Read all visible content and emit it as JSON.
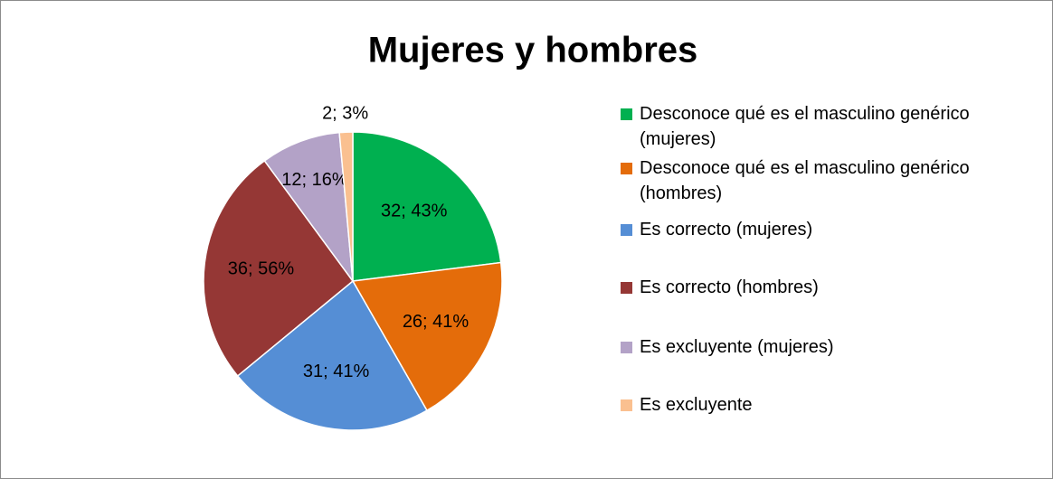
{
  "chart_data": {
    "type": "pie",
    "title": "Mujeres y hombres",
    "categories": [
      "Desconoce qué es el masculino genérico (mujeres)",
      "Desconoce qué es el masculino genérico (hombres)",
      "Es correcto (mujeres)",
      "Es correcto (hombres)",
      "Es excluyente (mujeres)",
      "Es excluyente"
    ],
    "values": [
      32,
      26,
      31,
      36,
      12,
      2
    ],
    "value_labels": [
      "32; 43%",
      "26; 41%",
      "31; 41%",
      "36; 56%",
      "12; 16%",
      "2; 3%"
    ],
    "colors": [
      "#00b050",
      "#e46c0a",
      "#558ed5",
      "#953735",
      "#b3a2c7",
      "#fac090"
    ],
    "legend": "right"
  }
}
